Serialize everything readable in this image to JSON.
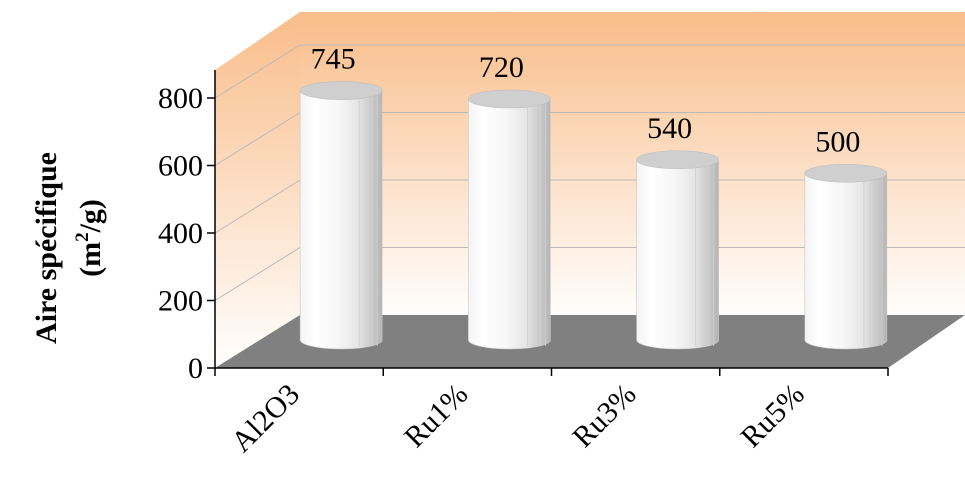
{
  "chart_data": {
    "type": "bar",
    "style": "3d-cylinder",
    "categories": [
      "Al2O3",
      "Ru1%",
      "Ru3%",
      "Ru5%"
    ],
    "values": [
      745,
      720,
      540,
      500
    ],
    "data_labels": [
      "745",
      "720",
      "540",
      "500"
    ],
    "title": "",
    "xlabel": "",
    "ylabel_line1": "Aire spécifique",
    "ylabel_line2_base": "(m",
    "ylabel_line2_sup": "2",
    "ylabel_line2_tail": "/g)",
    "ylim": [
      0,
      800
    ],
    "yticks": [
      0,
      200,
      400,
      600,
      800
    ],
    "ytick_labels": [
      "0",
      "200",
      "400",
      "600",
      "800"
    ],
    "grid": true,
    "legend": "none",
    "colors": {
      "wall_top": "#f9bd8a",
      "wall_bottom": "#ffffff",
      "floor": "#808080",
      "bar_light": "#ffffff",
      "bar_mid": "#ececec",
      "bar_dark": "#b9b9b9",
      "bar_top": "#cfcfcf"
    }
  }
}
